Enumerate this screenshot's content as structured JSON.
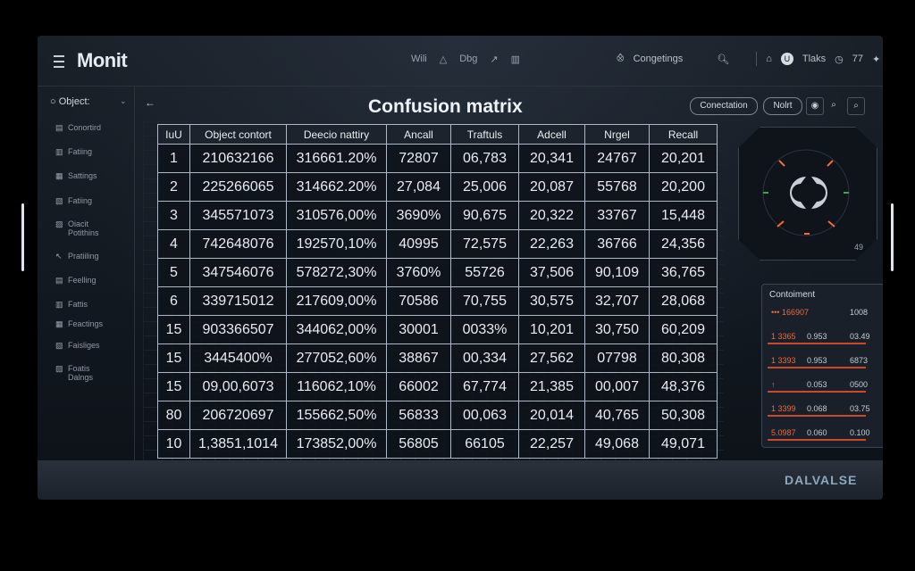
{
  "app": {
    "logo": "Monit"
  },
  "topbar": {
    "mid_items": [
      "Wili",
      "△",
      "Dbg",
      "↗",
      "▥"
    ],
    "connect_label": "Congetings",
    "user_label": "Tlaks",
    "counter": "77"
  },
  "sidebar": {
    "header": "Object:",
    "items": [
      {
        "label": "Conortird",
        "icon": "▤"
      },
      {
        "label": "Fatiing",
        "icon": "▥"
      },
      {
        "label": "Sattings",
        "icon": "▦"
      },
      {
        "label": "Fatiing",
        "icon": "▧"
      },
      {
        "label": "Oiacit",
        "label2": "Potithins",
        "icon": "▨"
      },
      {
        "label": "Pratiiling",
        "icon": "↖"
      },
      {
        "label": "Feelling",
        "icon": "▤"
      },
      {
        "label": "Fattis",
        "icon": "▥"
      },
      {
        "label": "Feactings",
        "icon": "▦"
      },
      {
        "label": "Faisliges",
        "icon": "▧"
      },
      {
        "label": "Foatis",
        "label2": "Dalngs",
        "icon": "▨"
      }
    ]
  },
  "main": {
    "back": "←",
    "title": "Confusion matrix",
    "actions": {
      "connection": "Conectation",
      "admin": "Nolrt"
    }
  },
  "matrix": {
    "headers": [
      "IuU",
      "Object contort",
      "Deecio nattiry",
      "Ancall",
      "Traftuls",
      "Adcell",
      "Nrgel",
      "Recall"
    ],
    "rows": [
      [
        "1",
        "210632166",
        "316661.20%",
        "72807",
        "06,783",
        "20,341",
        "24767",
        "20,201"
      ],
      [
        "2",
        "225266065",
        "314662.20%",
        "27,084",
        "25,006",
        "20,087",
        "55768",
        "20,200"
      ],
      [
        "3",
        "345571073",
        "310576,00%",
        "3690%",
        "90,675",
        "20,322",
        "33767",
        "15,448"
      ],
      [
        "4",
        "742648076",
        "192570,10%",
        "40995",
        "72,575",
        "22,263",
        "36766",
        "24,356"
      ],
      [
        "5",
        "347546076",
        "578272,30%",
        "3760%",
        "55726",
        "37,506",
        "90,109",
        "36,765"
      ],
      [
        "6",
        "339715012",
        "217609,00%",
        "70586",
        "70,755",
        "30,575",
        "32,707",
        "28,068"
      ],
      [
        "15",
        "903366507",
        "344062,00%",
        "30001",
        "0033%",
        "10,201",
        "30,750",
        "60,209"
      ],
      [
        "15",
        "3445400%",
        "277052,60%",
        "38867",
        "00,334",
        "27,562",
        "07798",
        "80,308"
      ],
      [
        "15",
        "09,00,6073",
        "116062,10%",
        "66002",
        "67,774",
        "21,385",
        "00,007",
        "48,376"
      ],
      [
        "80",
        "206720697",
        "155662,50%",
        "56833",
        "00,063",
        "20,014",
        "40,765",
        "50,308"
      ],
      [
        "10",
        "1,3851,1014",
        "173852,00%",
        "56805",
        "66105",
        "22,257",
        "49,068",
        "49,071"
      ]
    ]
  },
  "dial": {
    "corner_label": "49"
  },
  "side_panel": {
    "title": "Contoiment",
    "rows": [
      {
        "a": "••• 166907",
        "b": "",
        "c": "1008"
      },
      {
        "a": "1 3365",
        "b": "0.953",
        "c": "03.49"
      },
      {
        "a": "1 3393",
        "b": "0.953",
        "c": "6873"
      },
      {
        "a": "↑",
        "b": "0.053",
        "c": "0500"
      },
      {
        "a": "1 3399",
        "b": "0.068",
        "c": "03.75"
      },
      {
        "a": "5.0987",
        "b": "0.060",
        "c": "0.100"
      }
    ]
  },
  "footer": {
    "brand": "DALVALSE"
  },
  "colors": {
    "accent_orange": "#f06a3a",
    "dial_green": "#3fa34a",
    "grid_line": "#aeb8c4"
  }
}
